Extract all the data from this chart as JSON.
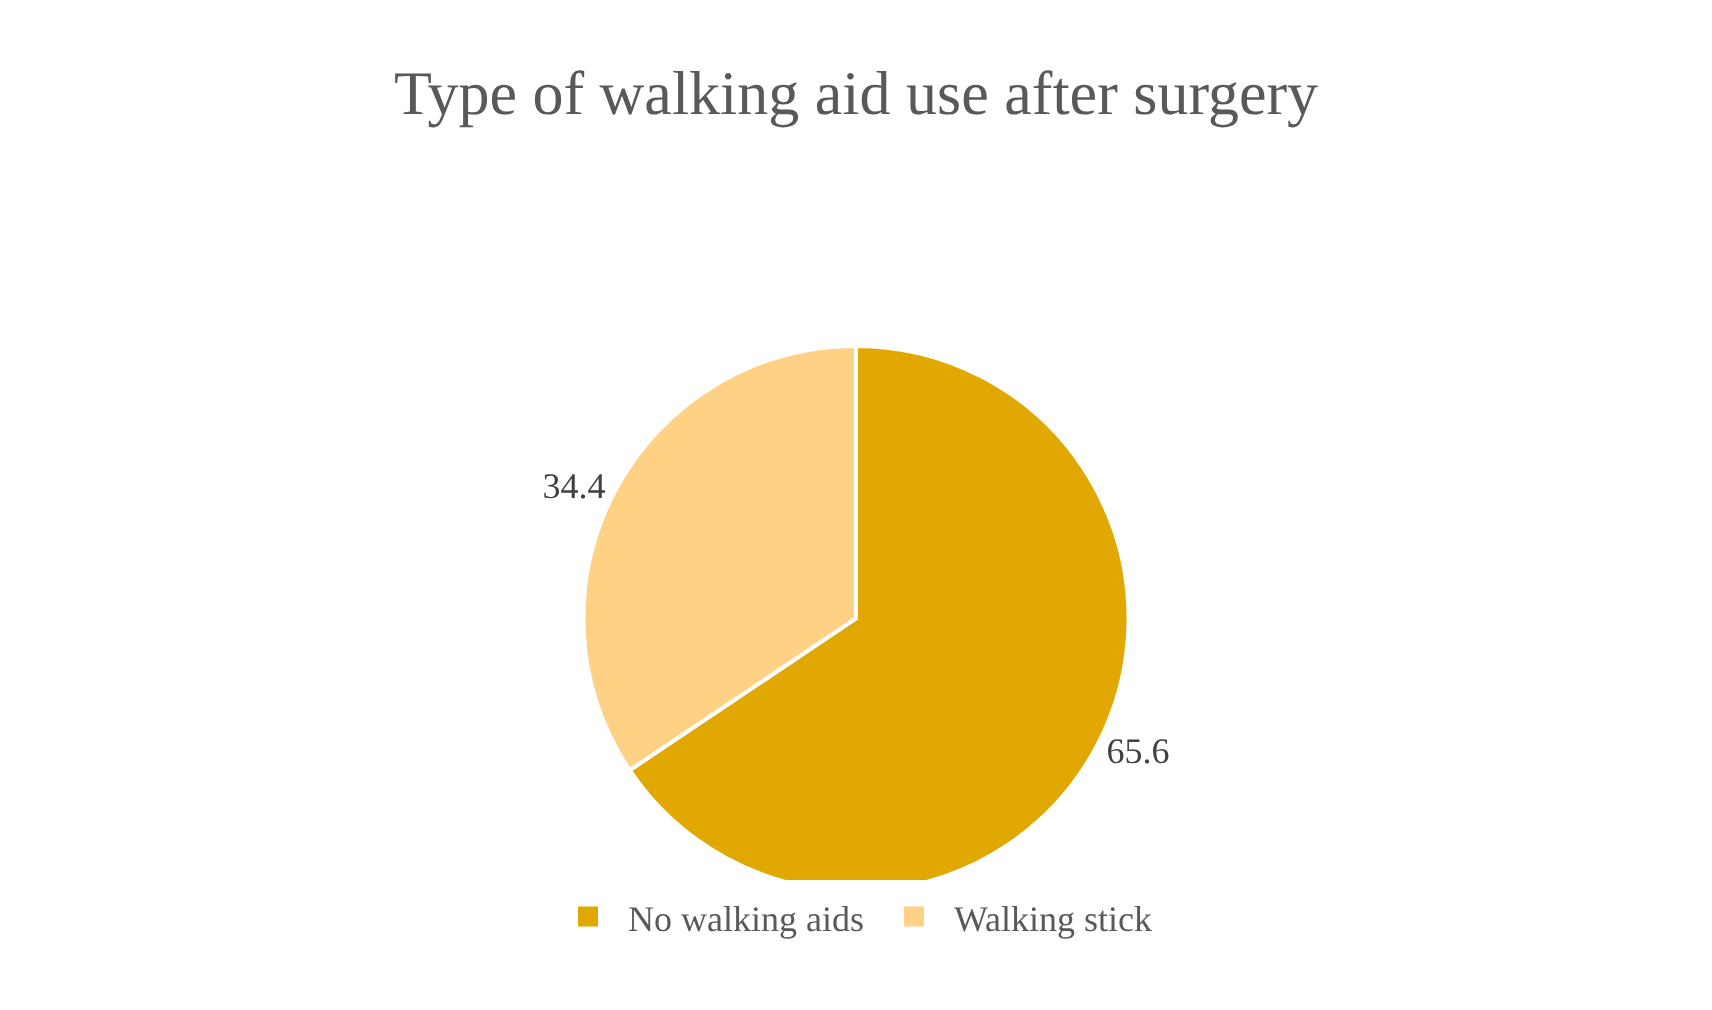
{
  "chart_data": {
    "type": "pie",
    "title": "Type of walking aid use after surgery",
    "categories": [
      "No walking aids",
      "Walking stick"
    ],
    "values": [
      65.6,
      34.4
    ],
    "colors": [
      "#e0a800",
      "#ffd184"
    ],
    "data_labels": true,
    "legend": "bottom"
  }
}
